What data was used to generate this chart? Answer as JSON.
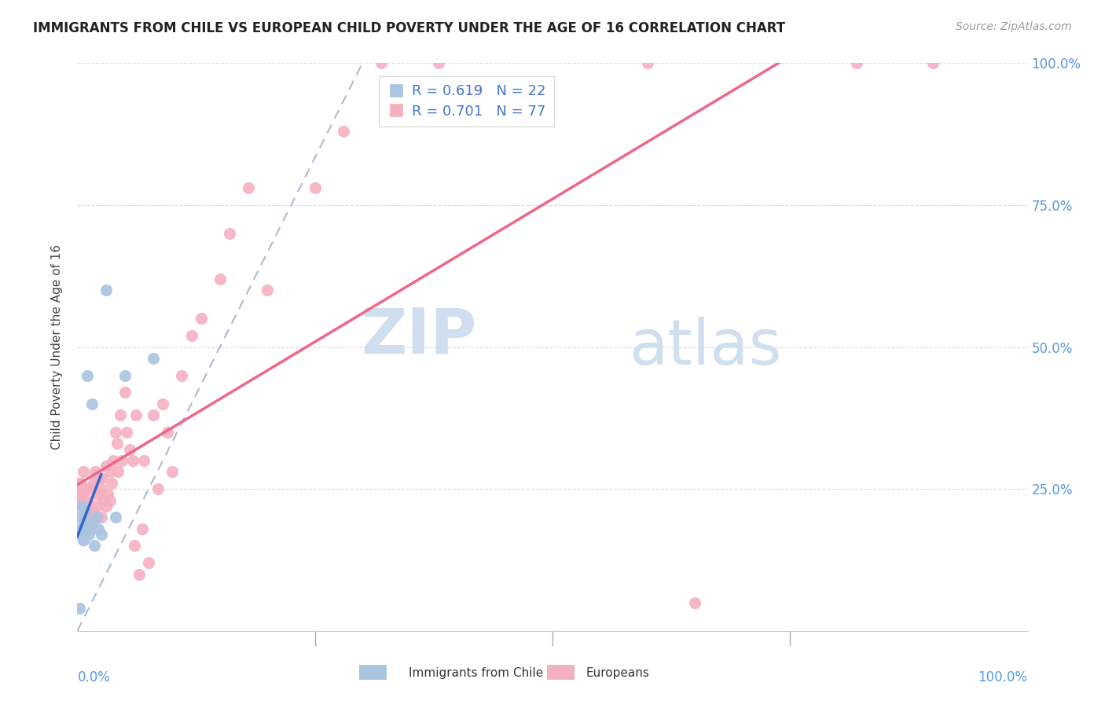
{
  "title": "IMMIGRANTS FROM CHILE VS EUROPEAN CHILD POVERTY UNDER THE AGE OF 16 CORRELATION CHART",
  "source": "Source: ZipAtlas.com",
  "ylabel": "Child Poverty Under the Age of 16",
  "legend_r_chile": "R = 0.619",
  "legend_n_chile": "N = 22",
  "legend_r_euro": "R = 0.701",
  "legend_n_euro": "N = 77",
  "legend_label_chile": "Immigrants from Chile",
  "legend_label_euro": "Europeans",
  "chile_color": "#aac4e2",
  "euro_color": "#f5b0c0",
  "chile_line_color": "#3366cc",
  "euro_line_color": "#ee6688",
  "dashed_line_color": "#aabbd4",
  "watermark_zip": "ZIP",
  "watermark_atlas": "atlas",
  "watermark_color": "#d0dff0",
  "chile_x": [
    0.2,
    0.3,
    0.3,
    0.4,
    0.5,
    0.6,
    0.6,
    0.7,
    0.8,
    0.9,
    1.0,
    1.2,
    1.3,
    1.5,
    1.8,
    2.0,
    2.2,
    2.5,
    3.0,
    4.0,
    5.0,
    8.0
  ],
  "chile_y": [
    4.0,
    18.0,
    20.0,
    17.0,
    22.0,
    16.0,
    16.0,
    19.0,
    21.0,
    18.0,
    45.0,
    17.0,
    19.0,
    40.0,
    15.0,
    20.0,
    18.0,
    17.0,
    60.0,
    20.0,
    45.0,
    48.0
  ],
  "euro_x": [
    0.1,
    0.2,
    0.3,
    0.3,
    0.4,
    0.4,
    0.5,
    0.5,
    0.6,
    0.7,
    0.8,
    0.8,
    0.9,
    1.0,
    1.0,
    1.1,
    1.2,
    1.3,
    1.3,
    1.4,
    1.5,
    1.5,
    1.6,
    1.7,
    1.8,
    1.9,
    2.0,
    2.1,
    2.2,
    2.3,
    2.5,
    2.5,
    2.6,
    2.8,
    3.0,
    3.0,
    3.2,
    3.4,
    3.5,
    3.6,
    3.8,
    4.0,
    4.2,
    4.3,
    4.5,
    4.7,
    5.0,
    5.2,
    5.5,
    5.8,
    6.0,
    6.2,
    6.5,
    6.8,
    7.0,
    7.5,
    8.0,
    8.5,
    9.0,
    9.5,
    10.0,
    11.0,
    12.0,
    13.0,
    15.0,
    16.0,
    18.0,
    20.0,
    25.0,
    28.0,
    32.0,
    38.0,
    42.0,
    60.0,
    65.0,
    82.0,
    90.0
  ],
  "euro_y": [
    26.0,
    24.0,
    22.0,
    25.0,
    23.0,
    26.0,
    24.0,
    22.0,
    28.0,
    25.0,
    20.0,
    22.0,
    18.0,
    25.0,
    20.0,
    22.0,
    23.0,
    21.0,
    18.0,
    20.0,
    19.0,
    25.0,
    21.0,
    26.0,
    20.0,
    28.0,
    22.0,
    27.0,
    24.0,
    27.0,
    20.0,
    25.0,
    27.0,
    23.0,
    22.0,
    29.0,
    24.0,
    23.0,
    28.0,
    26.0,
    30.0,
    35.0,
    33.0,
    28.0,
    38.0,
    30.0,
    42.0,
    35.0,
    32.0,
    30.0,
    15.0,
    38.0,
    10.0,
    18.0,
    30.0,
    12.0,
    38.0,
    25.0,
    40.0,
    35.0,
    28.0,
    45.0,
    52.0,
    55.0,
    62.0,
    70.0,
    78.0,
    60.0,
    78.0,
    88.0,
    100.0,
    100.0,
    95.0,
    100.0,
    5.0,
    100.0,
    100.0
  ],
  "xlim": [
    0,
    100
  ],
  "ylim": [
    0,
    100
  ],
  "x_ticks": [
    0,
    25,
    50,
    75,
    100
  ],
  "x_tick_labels_left": "0.0%",
  "x_tick_labels_right": "100.0%",
  "y_tick_labels": [
    "25.0%",
    "50.0%",
    "75.0%",
    "100.0%"
  ],
  "y_tick_vals": [
    25,
    50,
    75,
    100
  ]
}
